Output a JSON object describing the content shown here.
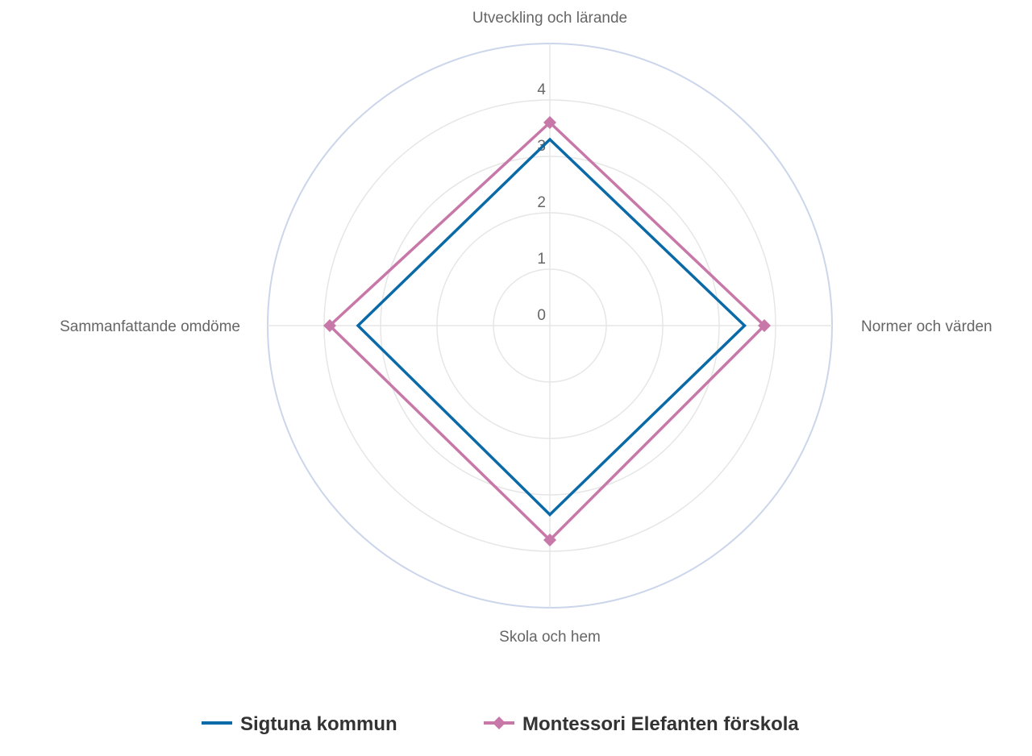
{
  "chart_data": {
    "type": "radar",
    "categories": [
      "Utveckling och lärande",
      "Normer och värden",
      "Skola och hem",
      "Sammanfattande omdöme"
    ],
    "r_ticks": [
      "0",
      "1",
      "2",
      "3",
      "4"
    ],
    "rlim": [
      0,
      5
    ],
    "grid": true,
    "legend_position": "bottom",
    "series": [
      {
        "name": "Sigtuna kommun",
        "values": [
          3.3,
          3.45,
          3.35,
          3.4
        ],
        "color": "#0a6aa8",
        "marker": "none"
      },
      {
        "name": "Montessori Elefanten förskola",
        "values": [
          3.6,
          3.8,
          3.8,
          3.9
        ],
        "color": "#c878a8",
        "marker": "diamond"
      }
    ]
  }
}
